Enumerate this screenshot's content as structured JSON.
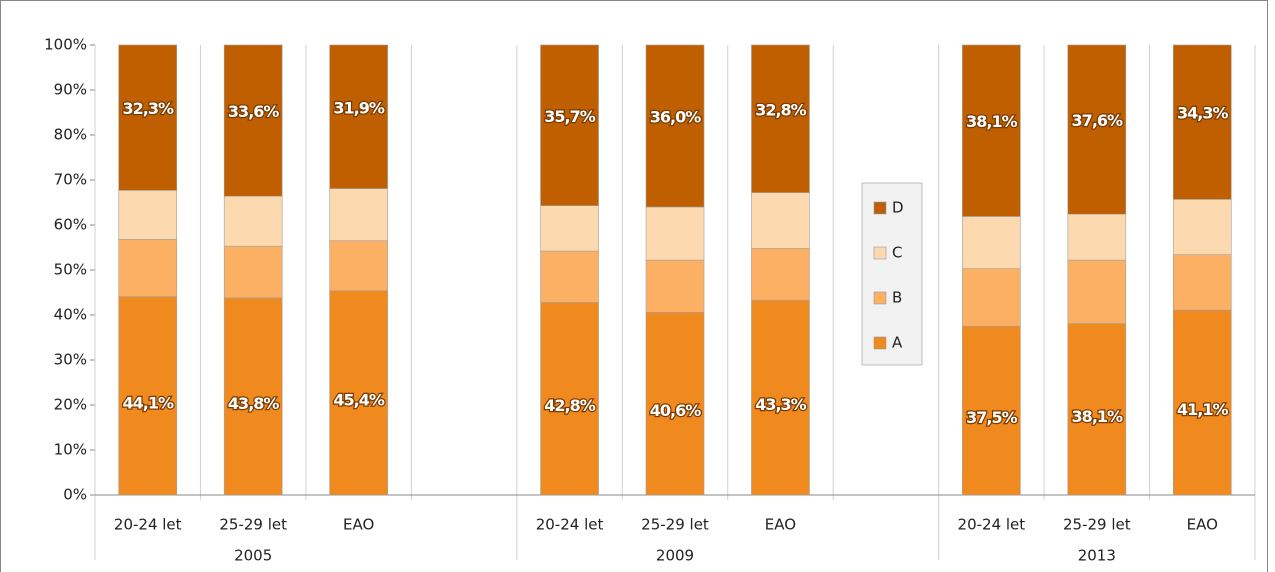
{
  "chart_data": {
    "type": "stacked-bar",
    "categories": [
      "20-24 let",
      "25-29 let",
      "EAO",
      null,
      "20-24 let",
      "25-29 let",
      "EAO",
      null,
      "20-24 let",
      "25-29 let",
      "EAO"
    ],
    "group_labels": [
      "2005",
      "2009",
      "2013"
    ],
    "series": [
      {
        "name": "A",
        "color": "#f08a1e",
        "values": [
          44.1,
          43.8,
          45.4,
          null,
          42.8,
          40.6,
          43.3,
          null,
          37.5,
          38.1,
          41.1
        ],
        "value_labels": [
          "44,1%",
          "43,8%",
          "45,4%",
          null,
          "42,8%",
          "40,6%",
          "43,3%",
          null,
          "37,5%",
          "38,1%",
          "41,1%"
        ]
      },
      {
        "name": "B",
        "color": "#fbb063",
        "values": [
          12.7,
          11.5,
          11.1,
          null,
          11.4,
          11.6,
          11.5,
          null,
          12.8,
          14.1,
          12.3
        ]
      },
      {
        "name": "C",
        "color": "#fdd9b0",
        "values": [
          10.9,
          11.1,
          11.6,
          null,
          10.1,
          11.8,
          12.4,
          null,
          11.6,
          10.2,
          12.3
        ]
      },
      {
        "name": "D",
        "color": "#bf5f00",
        "values": [
          32.3,
          33.6,
          31.9,
          null,
          35.7,
          36.0,
          32.8,
          null,
          38.1,
          37.6,
          34.3
        ],
        "value_labels": [
          "32,3%",
          "33,6%",
          "31,9%",
          null,
          "35,7%",
          "36,0%",
          "32,8%",
          null,
          "38,1%",
          "37,6%",
          "34,3%"
        ]
      }
    ],
    "ylim": [
      0,
      100
    ],
    "yticks": [
      {
        "value": 0,
        "label": "0%"
      },
      {
        "value": 10,
        "label": "10%"
      },
      {
        "value": 20,
        "label": "20%"
      },
      {
        "value": 30,
        "label": "30%"
      },
      {
        "value": 40,
        "label": "40%"
      },
      {
        "value": 50,
        "label": "50%"
      },
      {
        "value": 60,
        "label": "60%"
      },
      {
        "value": 70,
        "label": "70%"
      },
      {
        "value": 80,
        "label": "80%"
      },
      {
        "value": 90,
        "label": "90%"
      },
      {
        "value": 100,
        "label": "100%"
      }
    ],
    "legend": "center"
  }
}
